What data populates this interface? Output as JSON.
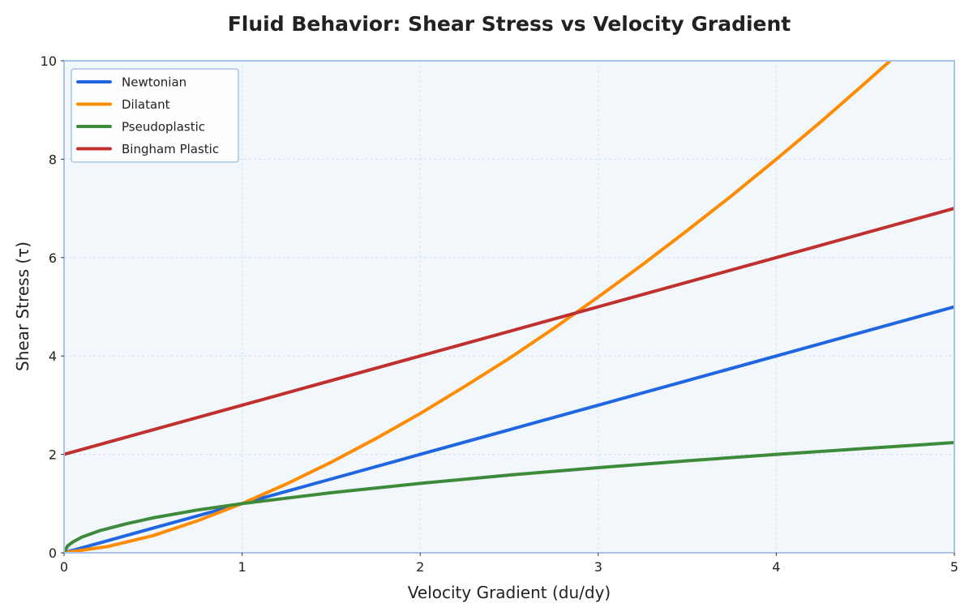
{
  "chart_data": {
    "type": "line",
    "title": "Fluid Behavior: Shear Stress vs Velocity Gradient",
    "xlabel": "Velocity Gradient (du/dy)",
    "ylabel": "Shear Stress (τ)",
    "xlim": [
      0,
      5
    ],
    "ylim": [
      0,
      10
    ],
    "x_ticks": [
      "0",
      "1",
      "2",
      "3",
      "4",
      "5"
    ],
    "y_ticks": [
      "0",
      "2",
      "4",
      "6",
      "8",
      "10"
    ],
    "grid": true,
    "legend_position": "top-left",
    "background_color": "#f2f7fc",
    "frame_color": "#a9c4ec",
    "grid_color": "#d5e2f2",
    "series": [
      {
        "name": "Newtonian",
        "color": "#1f66e0",
        "x": [
          0,
          0.5,
          1,
          1.5,
          2,
          2.5,
          3,
          3.5,
          4,
          4.5,
          5
        ],
        "y": [
          0,
          0.5,
          1,
          1.5,
          2,
          2.5,
          3,
          3.5,
          4,
          4.5,
          5
        ]
      },
      {
        "name": "Dilatant",
        "color": "#ff8c00",
        "x": [
          0,
          0.25,
          0.5,
          0.75,
          1,
          1.25,
          1.5,
          1.75,
          2,
          2.25,
          2.5,
          2.75,
          3,
          3.25,
          3.5,
          3.75,
          4,
          4.25,
          4.5,
          4.64
        ],
        "y": [
          0,
          0.13,
          0.35,
          0.65,
          1,
          1.4,
          1.84,
          2.32,
          2.83,
          3.38,
          3.95,
          4.56,
          5.2,
          5.86,
          6.55,
          7.26,
          8,
          8.76,
          9.55,
          10
        ]
      },
      {
        "name": "Pseudoplastic",
        "color": "#3d8a3a",
        "x": [
          0,
          0.02,
          0.05,
          0.1,
          0.2,
          0.35,
          0.5,
          0.75,
          1,
          1.5,
          2,
          2.5,
          3,
          3.5,
          4,
          4.5,
          5
        ],
        "y": [
          0,
          0.14,
          0.22,
          0.32,
          0.45,
          0.59,
          0.71,
          0.87,
          1,
          1.22,
          1.41,
          1.58,
          1.73,
          1.87,
          2,
          2.12,
          2.24
        ]
      },
      {
        "name": "Bingham Plastic",
        "color": "#c0302e",
        "x": [
          0,
          1,
          2,
          3,
          4,
          5
        ],
        "y": [
          2,
          3,
          4,
          5,
          6,
          7
        ]
      }
    ]
  }
}
